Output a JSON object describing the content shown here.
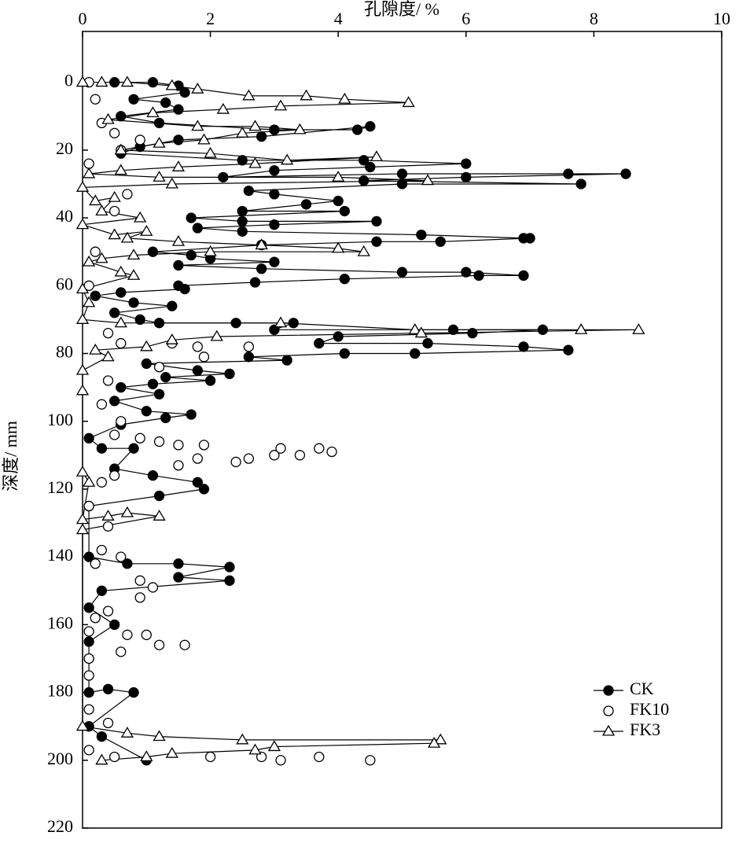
{
  "chart_data": {
    "type": "scatter",
    "xlabel": "孔隙度/ %",
    "ylabel": "深度/ mm",
    "xlim": [
      0,
      10
    ],
    "xticks": [
      0,
      2,
      4,
      6,
      8,
      10
    ],
    "ylim": [
      -15,
      220
    ],
    "yticks": [
      0,
      20,
      40,
      60,
      80,
      100,
      120,
      140,
      160,
      180,
      200,
      220
    ],
    "y_inverted": true,
    "x_axis_position": "top",
    "legend": "lower right",
    "series": [
      {
        "name": "CK",
        "color": "#000000",
        "marker": "filled-circle",
        "line": true,
        "x": [
          0.5,
          1.1,
          1.5,
          1.6,
          0.8,
          1.3,
          1.5,
          0.6,
          1.2,
          3.0,
          4.3,
          4.5,
          2.8,
          1.5,
          0.9,
          0.6,
          2.5,
          4.4,
          6.0,
          4.5,
          3.0,
          2.2,
          5.0,
          7.6,
          8.5,
          6.0,
          4.4,
          7.8,
          5.0,
          2.6,
          3.0,
          4.0,
          3.5,
          2.5,
          4.1,
          1.7,
          2.5,
          4.6,
          3.0,
          1.8,
          2.5,
          5.3,
          6.9,
          7.0,
          5.6,
          4.6,
          2.8,
          1.1,
          1.7,
          2.0,
          3.0,
          1.5,
          2.8,
          5.0,
          6.0,
          6.9,
          6.2,
          4.1,
          2.7,
          1.5,
          1.6,
          0.6,
          0.2,
          0.8,
          1.4,
          0.5,
          0.9,
          1.2,
          2.4,
          3.3,
          3.0,
          5.8,
          7.2,
          6.1,
          4.0,
          3.7,
          5.4,
          6.9,
          7.6,
          5.2,
          4.1,
          2.6,
          3.2,
          1.0,
          1.8,
          2.3,
          1.3,
          2.0,
          1.1,
          0.6,
          1.2,
          0.5,
          1.0,
          1.7,
          1.3,
          0.6,
          0.1,
          0.3,
          0.8,
          0.5,
          1.1,
          1.8,
          1.9,
          1.2,
          0.1,
          0.1,
          0.7,
          1.5,
          2.3,
          1.5,
          2.3,
          0.3,
          0.1,
          0.5,
          0.1,
          0.1,
          0.1,
          0.4,
          0.8,
          0.1,
          0.3,
          1.0
        ],
        "y": [
          0,
          0,
          1,
          3,
          5,
          6,
          8,
          10,
          12,
          14,
          14,
          13,
          16,
          17,
          19,
          21,
          23,
          23,
          24,
          25,
          26,
          28,
          27,
          27,
          27,
          28,
          29,
          30,
          30,
          32,
          33,
          35,
          36,
          38,
          38,
          40,
          41,
          41,
          42,
          43,
          44,
          45,
          46,
          46,
          47,
          47,
          48,
          50,
          51,
          52,
          53,
          54,
          55,
          56,
          56,
          57,
          57,
          58,
          59,
          60,
          61,
          62,
          63,
          65,
          66,
          68,
          70,
          71,
          71,
          71,
          73,
          73,
          73,
          74,
          75,
          77,
          77,
          78,
          79,
          80,
          80,
          81,
          82,
          83,
          85,
          86,
          87,
          88,
          89,
          90,
          92,
          94,
          97,
          98,
          99,
          101,
          105,
          108,
          108,
          114,
          116,
          118,
          120,
          122,
          125,
          140,
          142,
          142,
          143,
          146,
          147,
          150,
          155,
          160,
          165,
          170,
          180,
          179,
          180,
          190,
          193,
          200
        ]
      },
      {
        "name": "FK10",
        "color": "#000000",
        "marker": "open-circle",
        "line": false,
        "x": [
          0.1,
          0.2,
          0.3,
          0.5,
          0.9,
          0.6,
          0.1,
          0.7,
          0.5,
          0.2,
          0.1,
          0.4,
          0.6,
          1.4,
          1.8,
          2.6,
          1.9,
          1.2,
          0.4,
          0.3,
          0.6,
          0.5,
          0.9,
          1.2,
          1.5,
          1.9,
          2.4,
          2.6,
          3.0,
          3.1,
          3.4,
          3.7,
          3.9,
          1.8,
          1.5,
          0.5,
          0.3,
          0.1,
          0.4,
          0.3,
          0.6,
          0.2,
          0.9,
          1.1,
          0.9,
          0.4,
          0.2,
          0.1,
          0.7,
          1.0,
          1.2,
          1.6,
          0.6,
          0.1,
          0.1,
          0.1,
          0.4,
          0.1,
          0.5,
          2.0,
          2.8,
          3.1,
          3.7,
          4.5
        ],
        "y": [
          0,
          5,
          12,
          15,
          17,
          20,
          24,
          33,
          38,
          50,
          60,
          74,
          77,
          77,
          78,
          78,
          81,
          84,
          88,
          95,
          100,
          104,
          105,
          106,
          107,
          107,
          112,
          111,
          110,
          108,
          110,
          108,
          109,
          111,
          113,
          116,
          118,
          125,
          131,
          138,
          140,
          142,
          147,
          149,
          152,
          156,
          158,
          162,
          163,
          163,
          166,
          166,
          168,
          170,
          175,
          185,
          189,
          197,
          199,
          199,
          199,
          200,
          199,
          200
        ]
      },
      {
        "name": "FK3",
        "color": "#000000",
        "marker": "open-triangle",
        "line": true,
        "x": [
          0.0,
          0.3,
          0.7,
          1.4,
          1.8,
          2.6,
          3.5,
          4.1,
          5.1,
          3.1,
          2.2,
          1.1,
          0.4,
          1.8,
          2.7,
          3.4,
          2.5,
          1.9,
          1.2,
          0.6,
          2.0,
          3.2,
          4.6,
          2.7,
          1.5,
          0.6,
          0.1,
          1.2,
          4.0,
          5.4,
          1.4,
          0.0,
          0.2,
          0.5,
          0.3,
          0.9,
          0.0,
          0.5,
          1.0,
          0.7,
          1.5,
          2.8,
          4.0,
          4.4,
          2.0,
          0.8,
          0.3,
          0.1,
          0.6,
          0.8,
          0.0,
          0.1,
          0.0,
          0.6,
          3.1,
          5.2,
          7.8,
          8.7,
          5.3,
          2.1,
          1.4,
          1.0,
          0.2,
          0.4,
          0.0,
          0.0,
          0.0,
          0.1,
          0.0,
          0.4,
          0.7,
          1.2,
          0.0,
          0.0,
          0.7,
          1.2,
          2.5,
          5.6,
          5.5,
          3.0,
          2.7,
          1.4,
          1.0,
          0.3
        ],
        "y": [
          0,
          0,
          0,
          1,
          2,
          4,
          4,
          5,
          6,
          7,
          8,
          9,
          11,
          13,
          13,
          14,
          15,
          17,
          18,
          20,
          21,
          23,
          22,
          24,
          25,
          26,
          27,
          28,
          28,
          29,
          30,
          31,
          35,
          34,
          38,
          40,
          42,
          45,
          44,
          46,
          47,
          48,
          49,
          50,
          50,
          51,
          52,
          53,
          56,
          57,
          61,
          65,
          70,
          71,
          71,
          73,
          73,
          73,
          74,
          75,
          76,
          78,
          79,
          81,
          85,
          91,
          115,
          118,
          129,
          128,
          127,
          128,
          132,
          190,
          192,
          193,
          194,
          194,
          195,
          196,
          197,
          198,
          199,
          200
        ]
      }
    ]
  }
}
